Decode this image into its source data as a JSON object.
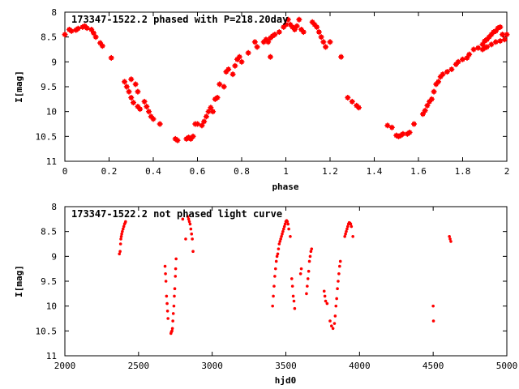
{
  "chart_data": [
    {
      "type": "scatter",
      "title": "173347-1522.2 phased with P=218.20day",
      "xlabel": "phase",
      "ylabel": "I[mag]",
      "xlim": [
        0,
        2
      ],
      "ylim": [
        11,
        8
      ],
      "y_inverted": true,
      "grid": false,
      "x_ticks": [
        0,
        0.2,
        0.4,
        0.6,
        0.8,
        1,
        1.2,
        1.4,
        1.6,
        1.8,
        2
      ],
      "x_tick_labels": [
        "0",
        "0.2",
        "0.4",
        "0.6",
        "0.8",
        "1",
        "1.2",
        "1.4",
        "1.6",
        "1.8",
        "2"
      ],
      "y_ticks": [
        8,
        8.5,
        9,
        9.5,
        10,
        10.5,
        11
      ],
      "y_tick_labels": [
        "8",
        "8.5",
        "9",
        "9.5",
        "10",
        "10.5",
        "11"
      ],
      "marker_color": "#ff0000",
      "series": [
        {
          "points": [
            [
              0.0,
              8.45
            ],
            [
              0.02,
              8.35
            ],
            [
              0.03,
              8.38
            ],
            [
              0.05,
              8.36
            ],
            [
              0.06,
              8.33
            ],
            [
              0.08,
              8.3
            ],
            [
              0.09,
              8.28
            ],
            [
              0.1,
              8.32
            ],
            [
              0.12,
              8.35
            ],
            [
              0.13,
              8.42
            ],
            [
              0.14,
              8.5
            ],
            [
              0.16,
              8.62
            ],
            [
              0.17,
              8.68
            ],
            [
              0.21,
              8.92
            ],
            [
              0.27,
              9.4
            ],
            [
              0.28,
              9.5
            ],
            [
              0.29,
              9.6
            ],
            [
              0.3,
              9.72
            ],
            [
              0.31,
              9.82
            ],
            [
              0.3,
              9.35
            ],
            [
              0.32,
              9.45
            ],
            [
              0.33,
              9.6
            ],
            [
              0.33,
              9.9
            ],
            [
              0.34,
              9.95
            ],
            [
              0.36,
              9.8
            ],
            [
              0.37,
              9.9
            ],
            [
              0.38,
              10.0
            ],
            [
              0.39,
              10.1
            ],
            [
              0.4,
              10.15
            ],
            [
              0.43,
              10.25
            ],
            [
              0.5,
              10.55
            ],
            [
              0.51,
              10.58
            ],
            [
              0.55,
              10.55
            ],
            [
              0.56,
              10.52
            ],
            [
              0.57,
              10.55
            ],
            [
              0.58,
              10.5
            ],
            [
              0.59,
              10.25
            ],
            [
              0.6,
              10.25
            ],
            [
              0.62,
              10.28
            ],
            [
              0.63,
              10.2
            ],
            [
              0.64,
              10.1
            ],
            [
              0.65,
              10.0
            ],
            [
              0.66,
              9.92
            ],
            [
              0.67,
              10.0
            ],
            [
              0.68,
              9.75
            ],
            [
              0.69,
              9.72
            ],
            [
              0.7,
              9.45
            ],
            [
              0.72,
              9.5
            ],
            [
              0.73,
              9.2
            ],
            [
              0.74,
              9.15
            ],
            [
              0.76,
              9.25
            ],
            [
              0.77,
              9.08
            ],
            [
              0.78,
              8.95
            ],
            [
              0.79,
              8.9
            ],
            [
              0.8,
              9.0
            ],
            [
              0.83,
              8.82
            ],
            [
              0.86,
              8.6
            ],
            [
              0.87,
              8.7
            ],
            [
              0.9,
              8.6
            ],
            [
              0.91,
              8.55
            ],
            [
              0.92,
              8.6
            ],
            [
              0.93,
              8.52
            ],
            [
              0.94,
              8.48
            ],
            [
              0.95,
              8.45
            ],
            [
              0.97,
              8.4
            ],
            [
              0.93,
              8.9
            ],
            [
              0.99,
              8.3
            ],
            [
              1.0,
              8.25
            ],
            [
              1.01,
              8.15
            ],
            [
              1.02,
              8.25
            ],
            [
              1.03,
              8.3
            ],
            [
              1.04,
              8.35
            ],
            [
              1.05,
              8.28
            ],
            [
              1.06,
              8.15
            ],
            [
              1.07,
              8.35
            ],
            [
              1.08,
              8.4
            ],
            [
              1.12,
              8.2
            ],
            [
              1.13,
              8.25
            ],
            [
              1.14,
              8.3
            ],
            [
              1.15,
              8.4
            ],
            [
              1.16,
              8.5
            ],
            [
              1.17,
              8.6
            ],
            [
              1.18,
              8.7
            ],
            [
              1.2,
              8.6
            ],
            [
              1.25,
              8.9
            ],
            [
              1.28,
              9.72
            ],
            [
              1.3,
              9.8
            ],
            [
              1.32,
              9.88
            ],
            [
              1.33,
              9.92
            ],
            [
              1.46,
              10.28
            ],
            [
              1.48,
              10.32
            ],
            [
              1.5,
              10.48
            ],
            [
              1.51,
              10.5
            ],
            [
              1.52,
              10.48
            ],
            [
              1.53,
              10.45
            ],
            [
              1.55,
              10.45
            ],
            [
              1.56,
              10.42
            ],
            [
              1.58,
              10.25
            ],
            [
              1.62,
              10.05
            ],
            [
              1.63,
              9.98
            ],
            [
              1.64,
              9.88
            ],
            [
              1.65,
              9.8
            ],
            [
              1.66,
              9.75
            ],
            [
              1.67,
              9.6
            ],
            [
              1.68,
              9.45
            ],
            [
              1.69,
              9.4
            ],
            [
              1.7,
              9.3
            ],
            [
              1.71,
              9.25
            ],
            [
              1.73,
              9.2
            ],
            [
              1.75,
              9.15
            ],
            [
              1.77,
              9.05
            ],
            [
              1.78,
              9.0
            ],
            [
              1.8,
              8.95
            ],
            [
              1.82,
              8.92
            ],
            [
              1.83,
              8.85
            ],
            [
              1.85,
              8.75
            ],
            [
              1.87,
              8.72
            ],
            [
              1.89,
              8.65
            ],
            [
              1.9,
              8.58
            ],
            [
              1.91,
              8.55
            ],
            [
              1.92,
              8.5
            ],
            [
              1.93,
              8.45
            ],
            [
              1.94,
              8.4
            ],
            [
              1.95,
              8.38
            ],
            [
              1.96,
              8.32
            ],
            [
              1.97,
              8.3
            ],
            [
              1.98,
              8.45
            ],
            [
              1.89,
              8.75
            ],
            [
              1.9,
              8.72
            ],
            [
              1.91,
              8.7
            ],
            [
              1.93,
              8.65
            ],
            [
              1.95,
              8.6
            ],
            [
              1.97,
              8.58
            ],
            [
              1.99,
              8.55
            ],
            [
              2.0,
              8.45
            ]
          ]
        }
      ]
    },
    {
      "type": "scatter",
      "title": "173347-1522.2 not phased light curve",
      "xlabel": "hjd0",
      "ylabel": "I[mag]",
      "xlim": [
        2000,
        5000
      ],
      "ylim": [
        11,
        8
      ],
      "y_inverted": true,
      "grid": false,
      "x_ticks": [
        2000,
        2500,
        3000,
        3500,
        4000,
        4500,
        5000
      ],
      "x_tick_labels": [
        "2000",
        "2500",
        "3000",
        "3500",
        "4000",
        "4500",
        "5000"
      ],
      "y_ticks": [
        8,
        8.5,
        9,
        9.5,
        10,
        10.5,
        11
      ],
      "y_tick_labels": [
        "8",
        "8.5",
        "9",
        "9.5",
        "10",
        "10.5",
        "11"
      ],
      "marker_color": "#ff0000",
      "series": [
        {
          "points": [
            [
              2370,
              8.95
            ],
            [
              2375,
              8.9
            ],
            [
              2378,
              8.75
            ],
            [
              2380,
              8.65
            ],
            [
              2383,
              8.6
            ],
            [
              2386,
              8.55
            ],
            [
              2390,
              8.5
            ],
            [
              2395,
              8.45
            ],
            [
              2400,
              8.4
            ],
            [
              2405,
              8.35
            ],
            [
              2410,
              8.32
            ],
            [
              2412,
              8.3
            ],
            [
              2680,
              9.2
            ],
            [
              2683,
              9.35
            ],
            [
              2686,
              9.5
            ],
            [
              2690,
              9.8
            ],
            [
              2694,
              9.95
            ],
            [
              2697,
              10.1
            ],
            [
              2700,
              10.25
            ],
            [
              2720,
              10.55
            ],
            [
              2723,
              10.52
            ],
            [
              2727,
              10.5
            ],
            [
              2730,
              10.45
            ],
            [
              2733,
              10.3
            ],
            [
              2736,
              10.15
            ],
            [
              2740,
              10.0
            ],
            [
              2743,
              9.8
            ],
            [
              2746,
              9.65
            ],
            [
              2750,
              9.4
            ],
            [
              2752,
              9.25
            ],
            [
              2755,
              9.05
            ],
            [
              2800,
              8.25
            ],
            [
              2820,
              8.65
            ],
            [
              2835,
              8.2
            ],
            [
              2840,
              8.25
            ],
            [
              2845,
              8.3
            ],
            [
              2850,
              8.35
            ],
            [
              2855,
              8.45
            ],
            [
              2860,
              8.55
            ],
            [
              2865,
              8.65
            ],
            [
              2870,
              8.9
            ],
            [
              3410,
              10.0
            ],
            [
              3415,
              9.8
            ],
            [
              3420,
              9.6
            ],
            [
              3425,
              9.4
            ],
            [
              3430,
              9.25
            ],
            [
              3435,
              9.1
            ],
            [
              3440,
              9.0
            ],
            [
              3445,
              8.95
            ],
            [
              3450,
              8.85
            ],
            [
              3455,
              8.75
            ],
            [
              3460,
              8.7
            ],
            [
              3465,
              8.65
            ],
            [
              3470,
              8.6
            ],
            [
              3475,
              8.55
            ],
            [
              3480,
              8.5
            ],
            [
              3485,
              8.45
            ],
            [
              3490,
              8.4
            ],
            [
              3495,
              8.35
            ],
            [
              3500,
              8.3
            ],
            [
              3505,
              8.28
            ],
            [
              3510,
              8.3
            ],
            [
              3515,
              8.35
            ],
            [
              3520,
              8.45
            ],
            [
              3530,
              8.6
            ],
            [
              3540,
              9.45
            ],
            [
              3545,
              9.6
            ],
            [
              3550,
              9.8
            ],
            [
              3555,
              9.9
            ],
            [
              3560,
              10.05
            ],
            [
              3600,
              9.35
            ],
            [
              3605,
              9.25
            ],
            [
              3640,
              9.75
            ],
            [
              3645,
              9.6
            ],
            [
              3650,
              9.45
            ],
            [
              3655,
              9.3
            ],
            [
              3660,
              9.1
            ],
            [
              3665,
              9.0
            ],
            [
              3670,
              8.9
            ],
            [
              3675,
              8.85
            ],
            [
              3760,
              9.7
            ],
            [
              3765,
              9.8
            ],
            [
              3770,
              9.9
            ],
            [
              3780,
              9.95
            ],
            [
              3800,
              10.3
            ],
            [
              3810,
              10.4
            ],
            [
              3820,
              10.45
            ],
            [
              3830,
              10.35
            ],
            [
              3835,
              10.2
            ],
            [
              3840,
              10.0
            ],
            [
              3845,
              9.85
            ],
            [
              3850,
              9.65
            ],
            [
              3855,
              9.5
            ],
            [
              3860,
              9.35
            ],
            [
              3865,
              9.2
            ],
            [
              3870,
              9.1
            ],
            [
              3900,
              8.6
            ],
            [
              3905,
              8.55
            ],
            [
              3910,
              8.5
            ],
            [
              3915,
              8.45
            ],
            [
              3920,
              8.4
            ],
            [
              3925,
              8.35
            ],
            [
              3930,
              8.32
            ],
            [
              3935,
              8.33
            ],
            [
              3940,
              8.35
            ],
            [
              3945,
              8.4
            ],
            [
              3955,
              8.6
            ],
            [
              4500,
              10.0
            ],
            [
              4502,
              10.3
            ],
            [
              4610,
              8.6
            ],
            [
              4615,
              8.65
            ],
            [
              4620,
              8.7
            ]
          ]
        }
      ]
    }
  ]
}
